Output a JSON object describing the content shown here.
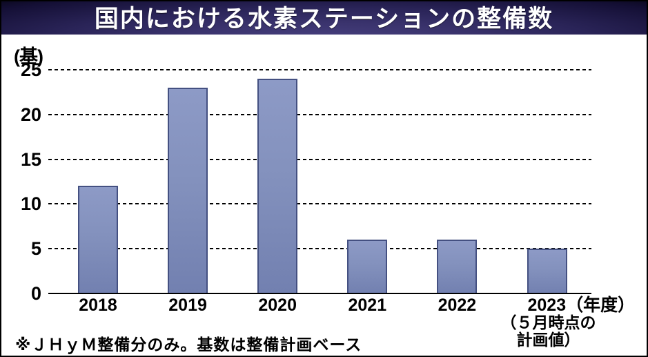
{
  "header": {
    "title": "国内における水素ステーションの整備数"
  },
  "chart_data": {
    "type": "bar",
    "title": "国内における水素ステーションの整備数",
    "unit_label": "(基)",
    "categories": [
      "2018",
      "2019",
      "2020",
      "2021",
      "2022",
      "2023"
    ],
    "values": [
      12,
      23,
      24,
      6,
      6,
      5
    ],
    "ylim": [
      0,
      25
    ],
    "yticks": [
      0,
      5,
      10,
      15,
      20,
      25
    ],
    "grid": "horizontal dashed",
    "legend": "none",
    "x_axis_unit_suffix": "（年度）",
    "last_category_annotation_lines": [
      "（５月時点の",
      "計画値）"
    ],
    "footnote": "※ＪＨｙＭ整備分のみ。基数は整備計画ベース",
    "colors": {
      "bar_fill_top": "#8d9ac6",
      "bar_fill_bottom": "#7280b0",
      "bar_border": "#445081",
      "grid_color": "#000000",
      "title_band_center": "#47407f",
      "title_band_edge": "#020108",
      "title_text": "#ffffff"
    }
  }
}
